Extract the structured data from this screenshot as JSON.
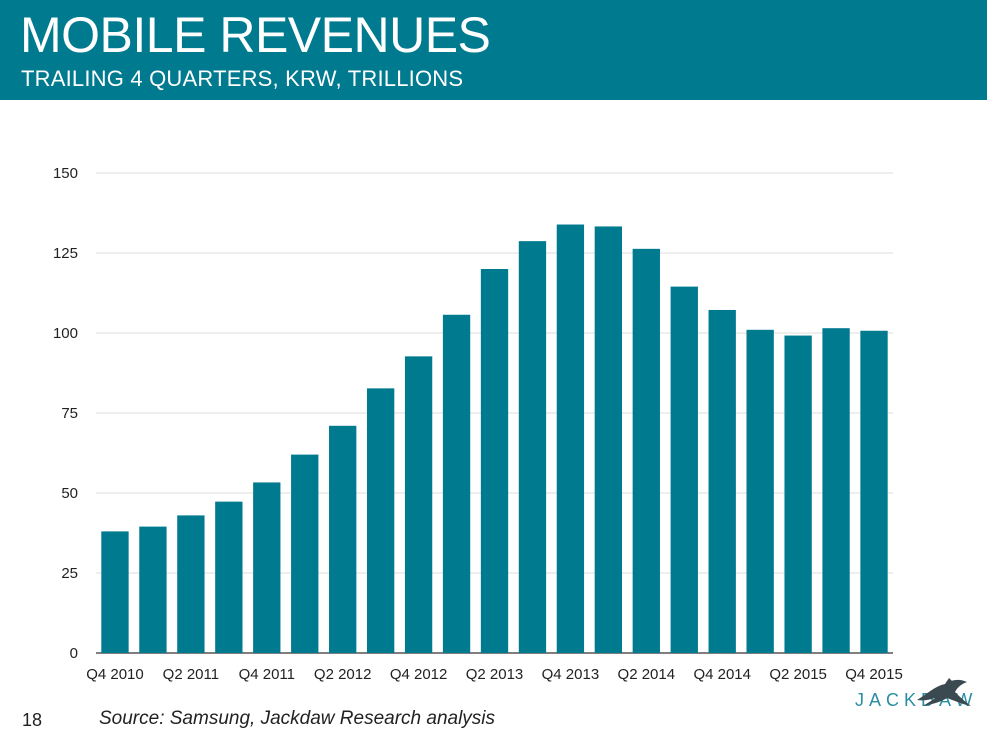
{
  "header": {
    "title": "MOBILE REVENUES",
    "subtitle": "TRAILING 4 QUARTERS, KRW, TRILLIONS"
  },
  "footer": {
    "page_number": "18",
    "source": "Source: Samsung, Jackdaw Research analysis",
    "logo_text": "JACKDAW"
  },
  "colors": {
    "header_bg": "#007a8f",
    "bar": "#007a8f",
    "grid": "#dddddd",
    "logo": "#2a8ea3"
  },
  "chart_data": {
    "type": "bar",
    "categories": [
      "Q4 2010",
      "Q1 2011",
      "Q2 2011",
      "Q3 2011",
      "Q4 2011",
      "Q1 2012",
      "Q2 2012",
      "Q3 2012",
      "Q4 2012",
      "Q1 2013",
      "Q2 2013",
      "Q3 2013",
      "Q4 2013",
      "Q1 2014",
      "Q2 2014",
      "Q3 2014",
      "Q4 2014",
      "Q1 2015",
      "Q2 2015",
      "Q3 2015",
      "Q4 2015"
    ],
    "values": [
      38,
      39.5,
      43,
      47.3,
      53.3,
      62,
      71,
      82.7,
      92.7,
      105.7,
      120,
      128.7,
      133.9,
      133.3,
      126.3,
      114.5,
      107.2,
      101,
      99.2,
      101.5,
      100.7
    ],
    "x_tick_labels": [
      "Q4 2010",
      "Q2 2011",
      "Q4 2011",
      "Q2 2012",
      "Q4 2012",
      "Q2 2013",
      "Q4 2013",
      "Q2 2014",
      "Q4 2014",
      "Q2 2015",
      "Q4 2015"
    ],
    "y_ticks": [
      "0",
      "25",
      "50",
      "75",
      "100",
      "125",
      "150"
    ],
    "ylim": [
      0,
      150
    ],
    "grid": true,
    "legend": "none"
  }
}
